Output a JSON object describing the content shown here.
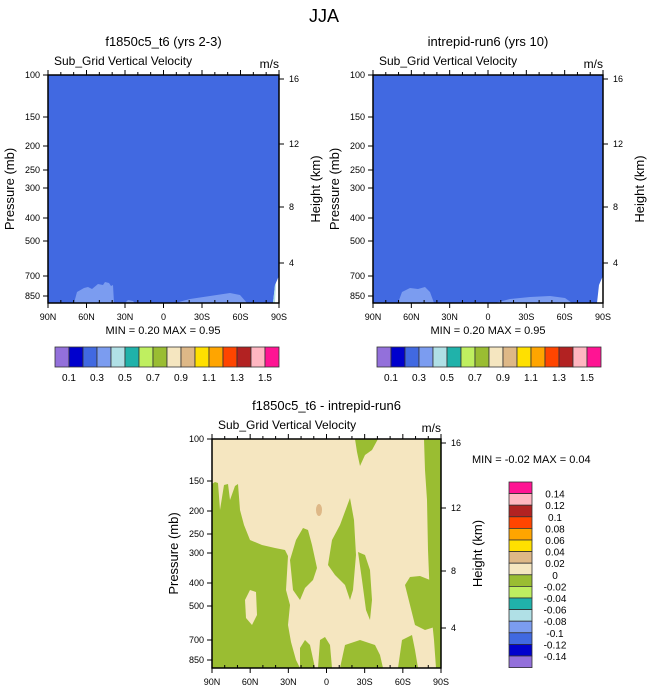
{
  "main_title": "JJA",
  "chart_data": [
    {
      "type": "heatmap",
      "title": "f1850c5_t6 (yrs 2-3)",
      "subtitle": "Sub_Grid Vertical Velocity",
      "units": "m/s",
      "ylabel": "Pressure (mb)",
      "ylabel_right": "Height (km)",
      "x_ticks": [
        "90N",
        "60N",
        "30N",
        "0",
        "30S",
        "60S",
        "90S"
      ],
      "y_ticks": [
        "100",
        "150",
        "200",
        "250",
        "300",
        "400",
        "500",
        "700",
        "850"
      ],
      "y_right_ticks": [
        "16",
        "12",
        "8",
        "4"
      ],
      "stats": {
        "min_label": "MIN =",
        "min": "0.20",
        "max_label": "MAX =",
        "max": "0.95"
      },
      "dominant_value": 0.3
    },
    {
      "type": "heatmap",
      "title": "intrepid-run6 (yrs 10)",
      "subtitle": "Sub_Grid Vertical Velocity",
      "units": "m/s",
      "ylabel": "Pressure (mb)",
      "ylabel_right": "Height (km)",
      "x_ticks": [
        "90N",
        "60N",
        "30N",
        "0",
        "30S",
        "60S",
        "90S"
      ],
      "y_ticks": [
        "100",
        "150",
        "200",
        "250",
        "300",
        "400",
        "500",
        "700",
        "850"
      ],
      "y_right_ticks": [
        "16",
        "12",
        "8",
        "4"
      ],
      "stats": {
        "min_label": "MIN =",
        "min": "0.20",
        "max_label": "MAX =",
        "max": "0.95"
      },
      "dominant_value": 0.3
    },
    {
      "type": "heatmap",
      "title": "f1850c5_t6 - intrepid-run6",
      "subtitle": "Sub_Grid Vertical Velocity",
      "units": "m/s",
      "ylabel": "Pressure (mb)",
      "ylabel_right": "Height (km)",
      "x_ticks": [
        "90N",
        "60N",
        "30N",
        "0",
        "30S",
        "60S",
        "90S"
      ],
      "y_ticks": [
        "100",
        "150",
        "200",
        "250",
        "300",
        "400",
        "500",
        "700",
        "850"
      ],
      "y_right_ticks": [
        "16",
        "12",
        "8",
        "4"
      ],
      "stats": {
        "min_label": "MIN =",
        "min": "-0.02",
        "max_label": "MAX =",
        "max": "0.04"
      },
      "dominant_value": 0.01
    }
  ],
  "colorbar_top": {
    "colors": [
      "#9370DB",
      "#0000CD",
      "#4169E1",
      "#7B9CF0",
      "#B0E0E6",
      "#20B2AA",
      "#BFEF60",
      "#9ABD32",
      "#F5E6C0",
      "#DEB887",
      "#FFE000",
      "#FFA500",
      "#FF4500",
      "#B22222",
      "#FFB6C1",
      "#FF1493"
    ],
    "labels": [
      "0.1",
      "0.3",
      "0.5",
      "0.7",
      "0.9",
      "1.1",
      "1.3",
      "1.5"
    ]
  },
  "colorbar_diff": {
    "colors": [
      "#FF1493",
      "#FFB6C1",
      "#B22222",
      "#FF4500",
      "#FFA500",
      "#FFE000",
      "#DEB887",
      "#F5E6C0",
      "#9ABD32",
      "#BFEF60",
      "#20B2AA",
      "#B0E0E6",
      "#7B9CF0",
      "#4169E1",
      "#0000CD",
      "#9370DB"
    ],
    "labels": [
      "0.14",
      "0.12",
      "0.1",
      "0.08",
      "0.06",
      "0.04",
      "0.02",
      "0",
      "-0.02",
      "-0.04",
      "-0.06",
      "-0.08",
      "-0.1",
      "-0.12",
      "-0.14"
    ]
  }
}
